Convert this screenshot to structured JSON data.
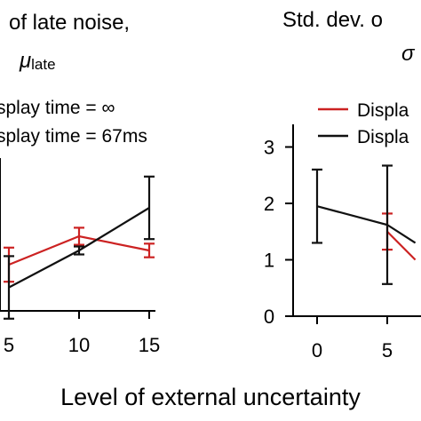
{
  "colors": {
    "red": "#cc2222",
    "black": "#111111",
    "axis": "#000000",
    "background": "#ffffff"
  },
  "chart_data": [
    {
      "type": "line",
      "title_line1": "of late noise,",
      "title_symbol": "μ",
      "title_subscript": "late",
      "xlabel": "",
      "ylabel": "",
      "x_ticks": [
        "5",
        "10",
        "15"
      ],
      "y_ticks": [],
      "legend": {
        "placement": "top-left",
        "entries": [
          "splay time = ∞",
          "splay time = 67ms"
        ]
      },
      "series": [
        {
          "color": "red",
          "x": [
            5,
            10,
            15
          ],
          "y": [
            1.25,
            1.75,
            1.5
          ],
          "err": [
            0.3,
            0.15,
            0.12
          ]
        },
        {
          "color": "black",
          "x": [
            5,
            10,
            15
          ],
          "y": [
            0.85,
            1.5,
            2.25
          ],
          "err": [
            0.55,
            0.07,
            0.55
          ]
        }
      ]
    },
    {
      "type": "line",
      "title_line1": "Std. dev. o",
      "title_symbol": "σ",
      "xlabel": "",
      "ylabel": "",
      "x_ticks": [
        "0",
        "5"
      ],
      "y_ticks": [
        "0",
        "1",
        "2",
        "3"
      ],
      "ylim": [
        0,
        3.5
      ],
      "legend": {
        "placement": "top-right",
        "entries": [
          "Displa",
          "Displa"
        ]
      },
      "series": [
        {
          "color": "red",
          "x": [
            5,
            7
          ],
          "y": [
            1.5,
            1.0
          ],
          "err": [
            0.32,
            0
          ]
        },
        {
          "color": "black",
          "x": [
            0,
            5,
            7
          ],
          "y": [
            1.95,
            1.62,
            1.3
          ],
          "err": [
            0.65,
            1.05,
            0
          ]
        }
      ]
    }
  ],
  "shared_xlabel": "Level of external uncertainty"
}
